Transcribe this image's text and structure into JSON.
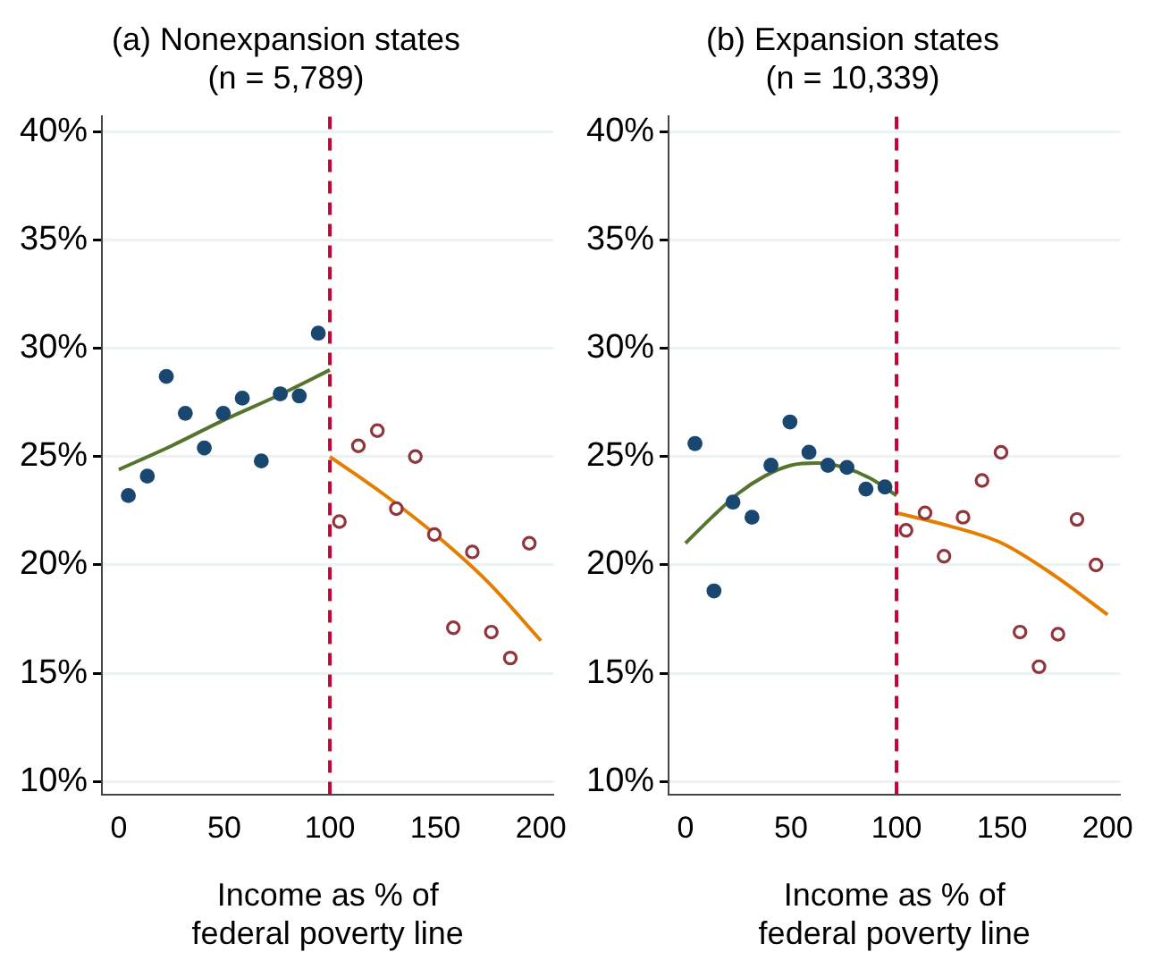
{
  "chart_data": [
    {
      "type": "scatter",
      "title": "(a) Nonexpansion states",
      "subtitle": "(n = 5,789)",
      "xlabel": "Income as % of federal poverty line",
      "xlim": [
        -8,
        206
      ],
      "ylim": [
        9.4,
        40.7
      ],
      "xticks": [
        0,
        50,
        100,
        150,
        200
      ],
      "yticks": [
        {
          "value": 10,
          "label": "10%"
        },
        {
          "value": 15,
          "label": "15%"
        },
        {
          "value": 20,
          "label": "20%"
        },
        {
          "value": 25,
          "label": "25%"
        },
        {
          "value": 30,
          "label": "30%"
        },
        {
          "value": 35,
          "label": "35%"
        },
        {
          "value": 40,
          "label": "40%"
        }
      ],
      "grid": "y",
      "marker": "circle",
      "ref_lines": [
        {
          "axis": "x",
          "value": 100,
          "color": "#c10534",
          "line_style": "dashed"
        }
      ],
      "series": [
        {
          "type": "scatter",
          "color": "#1a476f",
          "x": [
            4.5,
            13.5,
            22.5,
            31.5,
            40.5,
            49.5,
            58.5,
            67.5,
            76.5,
            85.5,
            94.5
          ],
          "values": [
            23.2,
            24.1,
            28.7,
            27.0,
            25.4,
            27.0,
            27.7,
            24.8,
            27.9,
            27.8,
            30.7
          ]
        },
        {
          "type": "scatter",
          "color": "#90353b",
          "x": [
            104.5,
            113.5,
            122.5,
            131.5,
            140.5,
            149.5,
            158.5,
            167.5,
            176.5,
            185.5,
            194.5
          ],
          "values": [
            22.0,
            25.5,
            26.2,
            22.6,
            25.0,
            21.4,
            17.1,
            20.6,
            16.9,
            15.7,
            21.0
          ]
        },
        {
          "type": "line",
          "color": "#55752f",
          "marker": "none",
          "line_style": "solid",
          "x": [
            0,
            25,
            50,
            75,
            100
          ],
          "values": [
            24.4,
            25.5,
            26.7,
            27.8,
            29.0
          ]
        },
        {
          "type": "line",
          "color": "#e37e00",
          "marker": "none",
          "line_style": "solid",
          "x": [
            100,
            125,
            150,
            175,
            200
          ],
          "values": [
            25.0,
            23.3,
            21.4,
            19.2,
            16.5
          ]
        }
      ]
    },
    {
      "type": "scatter",
      "title": "(b) Expansion states",
      "subtitle": "(n = 10,339)",
      "xlabel": "Income as % of federal poverty line",
      "xlim": [
        -8,
        206
      ],
      "ylim": [
        9.4,
        40.7
      ],
      "xticks": [
        0,
        50,
        100,
        150,
        200
      ],
      "yticks": [
        {
          "value": 10,
          "label": "10%"
        },
        {
          "value": 15,
          "label": "15%"
        },
        {
          "value": 20,
          "label": "20%"
        },
        {
          "value": 25,
          "label": "25%"
        },
        {
          "value": 30,
          "label": "30%"
        },
        {
          "value": 35,
          "label": "35%"
        },
        {
          "value": 40,
          "label": "40%"
        }
      ],
      "grid": "y",
      "marker": "circle",
      "ref_lines": [
        {
          "axis": "x",
          "value": 100,
          "color": "#c10534",
          "line_style": "dashed"
        }
      ],
      "series": [
        {
          "type": "scatter",
          "color": "#1a476f",
          "x": [
            4.5,
            13.5,
            22.5,
            31.5,
            40.5,
            49.5,
            58.5,
            67.5,
            76.5,
            85.5,
            94.5
          ],
          "values": [
            25.6,
            18.8,
            22.9,
            22.2,
            24.6,
            26.6,
            25.2,
            24.6,
            24.5,
            23.5,
            23.6
          ]
        },
        {
          "type": "scatter",
          "color": "#90353b",
          "x": [
            104.5,
            113.5,
            122.5,
            131.5,
            140.5,
            149.5,
            158.5,
            167.5,
            176.5,
            185.5,
            194.5
          ],
          "values": [
            21.6,
            22.4,
            20.4,
            22.2,
            23.9,
            25.2,
            16.9,
            15.3,
            16.8,
            22.1,
            20.0
          ]
        },
        {
          "type": "line",
          "color": "#55752f",
          "marker": "none",
          "line_style": "solid",
          "x": [
            0,
            12.5,
            25,
            37.5,
            50,
            62.5,
            75,
            87.5,
            100
          ],
          "values": [
            21.0,
            22.2,
            23.3,
            24.1,
            24.6,
            24.7,
            24.5,
            24.0,
            23.2
          ]
        },
        {
          "type": "line",
          "color": "#e37e00",
          "marker": "none",
          "line_style": "solid",
          "x": [
            100,
            125,
            150,
            175,
            200
          ],
          "values": [
            22.4,
            21.8,
            21.0,
            19.5,
            17.7
          ]
        }
      ]
    }
  ]
}
